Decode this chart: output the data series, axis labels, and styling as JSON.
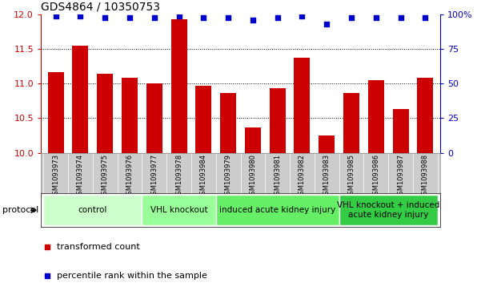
{
  "title": "GDS4864 / 10350753",
  "samples": [
    "GSM1093973",
    "GSM1093974",
    "GSM1093975",
    "GSM1093976",
    "GSM1093977",
    "GSM1093978",
    "GSM1093984",
    "GSM1093979",
    "GSM1093980",
    "GSM1093981",
    "GSM1093982",
    "GSM1093983",
    "GSM1093985",
    "GSM1093986",
    "GSM1093987",
    "GSM1093988"
  ],
  "bar_values": [
    11.17,
    11.55,
    11.14,
    11.08,
    11.01,
    11.93,
    10.97,
    10.87,
    10.37,
    10.93,
    11.37,
    10.25,
    10.87,
    11.05,
    10.63,
    11.08
  ],
  "percentile_values": [
    99,
    99,
    98,
    98,
    98,
    99,
    98,
    98,
    96,
    98,
    99,
    93,
    98,
    98,
    98,
    98
  ],
  "ylim_left": [
    10.0,
    12.0
  ],
  "ylim_right": [
    0,
    100
  ],
  "yticks_left": [
    10.0,
    10.5,
    11.0,
    11.5,
    12.0
  ],
  "yticks_right": [
    0,
    25,
    50,
    75,
    100
  ],
  "bar_color": "#cc0000",
  "dot_color": "#0000cc",
  "bg_color": "#ffffff",
  "plot_bg_color": "#ffffff",
  "tick_label_color": "#c8c8c8",
  "protocol_groups": [
    {
      "label": "control",
      "start": 0,
      "end": 4,
      "color": "#ccffcc"
    },
    {
      "label": "VHL knockout",
      "start": 4,
      "end": 7,
      "color": "#99ff99"
    },
    {
      "label": "induced acute kidney injury",
      "start": 7,
      "end": 12,
      "color": "#66ee66"
    },
    {
      "label": "VHL knockout + induced\nacute kidney injury",
      "start": 12,
      "end": 16,
      "color": "#33cc44"
    }
  ],
  "protocol_label": "protocol",
  "legend_items": [
    {
      "label": "transformed count",
      "color": "#cc0000"
    },
    {
      "label": "percentile rank within the sample",
      "color": "#0000cc"
    }
  ],
  "gridline_color": "#000000",
  "title_fontsize": 10,
  "axis_fontsize": 8,
  "sample_fontsize": 6,
  "legend_fontsize": 8,
  "protocol_fontsize": 7.5
}
